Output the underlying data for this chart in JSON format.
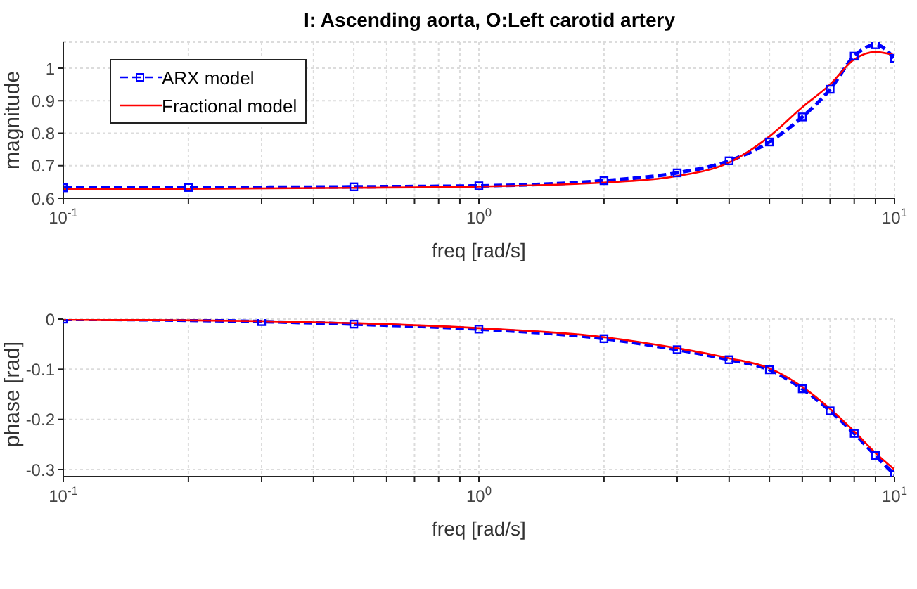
{
  "chart_data": [
    {
      "type": "line",
      "title": "I: Ascending aorta, O:Left carotid artery",
      "xlabel": "freq [rad/s]",
      "ylabel": "magnitude",
      "log": "x",
      "grid": true,
      "legend": "top left",
      "xlim": [
        0.1,
        10
      ],
      "xticks": [
        {
          "value": 0.1,
          "label": "10$^{-1}$"
        },
        {
          "value": 0.2,
          "label": null
        },
        {
          "value": 0.3,
          "label": null
        },
        {
          "value": 0.4,
          "label": null
        },
        {
          "value": 0.5,
          "label": null
        },
        {
          "value": 0.6,
          "label": null
        },
        {
          "value": 0.7,
          "label": null
        },
        {
          "value": 0.8,
          "label": null
        },
        {
          "value": 0.9,
          "label": null
        },
        {
          "value": 1,
          "label": "10$^{0}$"
        },
        {
          "value": 2,
          "label": null
        },
        {
          "value": 3,
          "label": null
        },
        {
          "value": 4,
          "label": null
        },
        {
          "value": 5,
          "label": null
        },
        {
          "value": 6,
          "label": null
        },
        {
          "value": 7,
          "label": null
        },
        {
          "value": 8,
          "label": null
        },
        {
          "value": 9,
          "label": null
        },
        {
          "value": 10,
          "label": "10$^{1}$"
        }
      ],
      "ylim": [
        0.6,
        1.08
      ],
      "yticks": [
        0.6,
        0.7,
        0.8,
        0.9,
        1
      ],
      "x": [
        0.1,
        0.2,
        0.5,
        1,
        2,
        3,
        4,
        5,
        6,
        7,
        8,
        9,
        10
      ],
      "series": [
        {
          "name": "ARX model",
          "color": "#0000ff",
          "marker": "square",
          "line_style": "dashed",
          "values": [
            0.632,
            0.633,
            0.635,
            0.638,
            0.654,
            0.678,
            0.715,
            0.773,
            0.85,
            0.935,
            1.037,
            1.072,
            1.03
          ]
        },
        {
          "name": "Fractional model",
          "color": "#ff0000",
          "marker": "none",
          "line_style": "solid",
          "values": [
            0.628,
            0.629,
            0.632,
            0.636,
            0.648,
            0.668,
            0.71,
            0.79,
            0.88,
            0.95,
            1.027,
            1.05,
            1.04
          ]
        }
      ]
    },
    {
      "type": "line",
      "xlabel": "freq [rad/s]",
      "ylabel": "phase [rad]",
      "log": "x",
      "grid": true,
      "xlim": [
        0.1,
        10
      ],
      "xticks": [
        {
          "value": 0.1,
          "label": "10$^{-1}$"
        },
        {
          "value": 0.2,
          "label": null
        },
        {
          "value": 0.3,
          "label": null
        },
        {
          "value": 0.4,
          "label": null
        },
        {
          "value": 0.5,
          "label": null
        },
        {
          "value": 0.6,
          "label": null
        },
        {
          "value": 0.7,
          "label": null
        },
        {
          "value": 0.8,
          "label": null
        },
        {
          "value": 0.9,
          "label": null
        },
        {
          "value": 1,
          "label": "10$^{0}$"
        },
        {
          "value": 2,
          "label": null
        },
        {
          "value": 3,
          "label": null
        },
        {
          "value": 4,
          "label": null
        },
        {
          "value": 5,
          "label": null
        },
        {
          "value": 6,
          "label": null
        },
        {
          "value": 7,
          "label": null
        },
        {
          "value": 8,
          "label": null
        },
        {
          "value": 9,
          "label": null
        },
        {
          "value": 10,
          "label": "10$^{1}$"
        }
      ],
      "ylim": [
        -0.314,
        0
      ],
      "yticks": [
        -0.3,
        -0.2,
        -0.1,
        0
      ],
      "x": [
        0.1,
        0.3,
        0.5,
        1,
        2,
        3,
        4,
        5,
        6,
        7,
        8,
        9,
        10
      ],
      "series": [
        {
          "color": "#0000ff",
          "marker": "square",
          "line_style": "dashed",
          "values": [
            0,
            -0.005,
            -0.01,
            -0.02,
            -0.039,
            -0.061,
            -0.081,
            -0.101,
            -0.139,
            -0.183,
            -0.228,
            -0.272,
            -0.31
          ]
        },
        {
          "color": "#ff0000",
          "marker": "none",
          "line_style": "solid",
          "values": [
            0,
            -0.004,
            -0.008,
            -0.018,
            -0.036,
            -0.058,
            -0.078,
            -0.098,
            -0.135,
            -0.179,
            -0.224,
            -0.267,
            -0.3
          ]
        }
      ]
    }
  ]
}
